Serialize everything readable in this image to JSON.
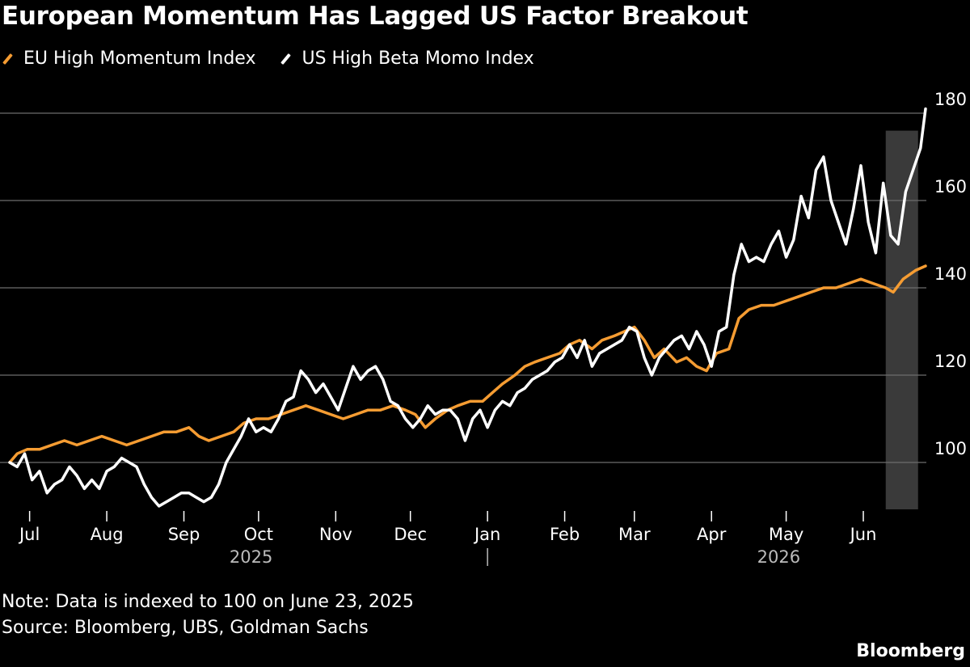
{
  "colors": {
    "eu": "#f59c32",
    "us": "#ffffff",
    "grid": "#6e6e6e",
    "shade": "#3a3a3a"
  },
  "chart_data": {
    "type": "line",
    "title": "European Momentum Has Lagged US Factor Breakout",
    "note": "Note: Data is indexed to 100 on June 23, 2025",
    "source": "Source: Bloomberg, UBS, Goldman Sachs",
    "brand": "Bloomberg",
    "ylim": [
      88,
      183
    ],
    "y_ticks": [
      100,
      120,
      140,
      160,
      180
    ],
    "x_range": [
      "2025-06-23",
      "2026-06-26"
    ],
    "month_ticks": [
      {
        "label": "Jul",
        "date": "2025-07-01"
      },
      {
        "label": "Aug",
        "date": "2025-08-01"
      },
      {
        "label": "Sep",
        "date": "2025-09-01"
      },
      {
        "label": "Oct",
        "date": "2025-10-01"
      },
      {
        "label": "Nov",
        "date": "2025-11-01"
      },
      {
        "label": "Dec",
        "date": "2025-12-01"
      },
      {
        "label": "Jan",
        "date": "2026-01-01"
      },
      {
        "label": "Feb",
        "date": "2026-02-01"
      },
      {
        "label": "Mar",
        "date": "2026-03-01"
      },
      {
        "label": "Apr",
        "date": "2026-04-01"
      },
      {
        "label": "May",
        "date": "2026-05-01"
      },
      {
        "label": "Jun",
        "date": "2026-06-01"
      }
    ],
    "year_labels": [
      {
        "label": "2025",
        "date": "2025-09-28"
      },
      {
        "label": "2026",
        "date": "2026-04-28"
      }
    ],
    "year_separator_date": "2026-01-01",
    "highlight": {
      "start": "2026-06-10",
      "end": "2026-06-23"
    },
    "grid": true,
    "legend_position": "top-left",
    "series": [
      {
        "name": "EU High Momentum Index",
        "color": "#f59c32",
        "points": [
          [
            "2025-06-23",
            100
          ],
          [
            "2025-06-26",
            102
          ],
          [
            "2025-06-30",
            103
          ],
          [
            "2025-07-05",
            103
          ],
          [
            "2025-07-10",
            104
          ],
          [
            "2025-07-15",
            105
          ],
          [
            "2025-07-20",
            104
          ],
          [
            "2025-07-25",
            105
          ],
          [
            "2025-07-30",
            106
          ],
          [
            "2025-08-04",
            105
          ],
          [
            "2025-08-09",
            104
          ],
          [
            "2025-08-14",
            105
          ],
          [
            "2025-08-19",
            106
          ],
          [
            "2025-08-24",
            107
          ],
          [
            "2025-08-29",
            107
          ],
          [
            "2025-09-03",
            108
          ],
          [
            "2025-09-07",
            106
          ],
          [
            "2025-09-11",
            105
          ],
          [
            "2025-09-16",
            106
          ],
          [
            "2025-09-21",
            107
          ],
          [
            "2025-09-25",
            109
          ],
          [
            "2025-09-30",
            110
          ],
          [
            "2025-10-05",
            110
          ],
          [
            "2025-10-10",
            111
          ],
          [
            "2025-10-15",
            112
          ],
          [
            "2025-10-20",
            113
          ],
          [
            "2025-10-25",
            112
          ],
          [
            "2025-10-30",
            111
          ],
          [
            "2025-11-04",
            110
          ],
          [
            "2025-11-09",
            111
          ],
          [
            "2025-11-14",
            112
          ],
          [
            "2025-11-19",
            112
          ],
          [
            "2025-11-24",
            113
          ],
          [
            "2025-11-29",
            112
          ],
          [
            "2025-12-03",
            111
          ],
          [
            "2025-12-07",
            108
          ],
          [
            "2025-12-11",
            110
          ],
          [
            "2025-12-16",
            112
          ],
          [
            "2025-12-20",
            113
          ],
          [
            "2025-12-25",
            114
          ],
          [
            "2025-12-30",
            114
          ],
          [
            "2026-01-03",
            116
          ],
          [
            "2026-01-07",
            118
          ],
          [
            "2026-01-12",
            120
          ],
          [
            "2026-01-16",
            122
          ],
          [
            "2026-01-20",
            123
          ],
          [
            "2026-01-25",
            124
          ],
          [
            "2026-01-30",
            125
          ],
          [
            "2026-02-03",
            127
          ],
          [
            "2026-02-07",
            128
          ],
          [
            "2026-02-12",
            126
          ],
          [
            "2026-02-16",
            128
          ],
          [
            "2026-02-21",
            129
          ],
          [
            "2026-02-25",
            130
          ],
          [
            "2026-03-01",
            131
          ],
          [
            "2026-03-05",
            128
          ],
          [
            "2026-03-09",
            124
          ],
          [
            "2026-03-13",
            126
          ],
          [
            "2026-03-18",
            123
          ],
          [
            "2026-03-22",
            124
          ],
          [
            "2026-03-26",
            122
          ],
          [
            "2026-03-30",
            121
          ],
          [
            "2026-04-03",
            125
          ],
          [
            "2026-04-08",
            126
          ],
          [
            "2026-04-12",
            133
          ],
          [
            "2026-04-16",
            135
          ],
          [
            "2026-04-21",
            136
          ],
          [
            "2026-04-26",
            136
          ],
          [
            "2026-05-01",
            137
          ],
          [
            "2026-05-06",
            138
          ],
          [
            "2026-05-11",
            139
          ],
          [
            "2026-05-16",
            140
          ],
          [
            "2026-05-21",
            140
          ],
          [
            "2026-05-26",
            141
          ],
          [
            "2026-05-31",
            142
          ],
          [
            "2026-06-05",
            141
          ],
          [
            "2026-06-10",
            140
          ],
          [
            "2026-06-13",
            139
          ],
          [
            "2026-06-17",
            142
          ],
          [
            "2026-06-22",
            144
          ],
          [
            "2026-06-26",
            145
          ]
        ]
      },
      {
        "name": "US High Beta Momo Index",
        "color": "#ffffff",
        "points": [
          [
            "2025-06-23",
            100
          ],
          [
            "2025-06-26",
            99
          ],
          [
            "2025-06-29",
            102
          ],
          [
            "2025-07-02",
            96
          ],
          [
            "2025-07-05",
            98
          ],
          [
            "2025-07-08",
            93
          ],
          [
            "2025-07-11",
            95
          ],
          [
            "2025-07-14",
            96
          ],
          [
            "2025-07-17",
            99
          ],
          [
            "2025-07-20",
            97
          ],
          [
            "2025-07-23",
            94
          ],
          [
            "2025-07-26",
            96
          ],
          [
            "2025-07-29",
            94
          ],
          [
            "2025-08-01",
            98
          ],
          [
            "2025-08-04",
            99
          ],
          [
            "2025-08-07",
            101
          ],
          [
            "2025-08-10",
            100
          ],
          [
            "2025-08-13",
            99
          ],
          [
            "2025-08-16",
            95
          ],
          [
            "2025-08-19",
            92
          ],
          [
            "2025-08-22",
            90
          ],
          [
            "2025-08-25",
            91
          ],
          [
            "2025-08-28",
            92
          ],
          [
            "2025-08-31",
            93
          ],
          [
            "2025-09-03",
            93
          ],
          [
            "2025-09-06",
            92
          ],
          [
            "2025-09-09",
            91
          ],
          [
            "2025-09-12",
            92
          ],
          [
            "2025-09-15",
            95
          ],
          [
            "2025-09-18",
            100
          ],
          [
            "2025-09-21",
            103
          ],
          [
            "2025-09-24",
            106
          ],
          [
            "2025-09-27",
            110
          ],
          [
            "2025-09-30",
            107
          ],
          [
            "2025-10-03",
            108
          ],
          [
            "2025-10-06",
            107
          ],
          [
            "2025-10-09",
            110
          ],
          [
            "2025-10-12",
            114
          ],
          [
            "2025-10-15",
            115
          ],
          [
            "2025-10-18",
            121
          ],
          [
            "2025-10-21",
            119
          ],
          [
            "2025-10-24",
            116
          ],
          [
            "2025-10-27",
            118
          ],
          [
            "2025-10-30",
            115
          ],
          [
            "2025-11-02",
            112
          ],
          [
            "2025-11-05",
            117
          ],
          [
            "2025-11-08",
            122
          ],
          [
            "2025-11-11",
            119
          ],
          [
            "2025-11-14",
            121
          ],
          [
            "2025-11-17",
            122
          ],
          [
            "2025-11-20",
            119
          ],
          [
            "2025-11-23",
            114
          ],
          [
            "2025-11-26",
            113
          ],
          [
            "2025-11-29",
            110
          ],
          [
            "2025-12-02",
            108
          ],
          [
            "2025-12-05",
            110
          ],
          [
            "2025-12-08",
            113
          ],
          [
            "2025-12-11",
            111
          ],
          [
            "2025-12-14",
            112
          ],
          [
            "2025-12-17",
            112
          ],
          [
            "2025-12-20",
            110
          ],
          [
            "2025-12-23",
            105
          ],
          [
            "2025-12-26",
            110
          ],
          [
            "2025-12-29",
            112
          ],
          [
            "2026-01-01",
            108
          ],
          [
            "2026-01-04",
            112
          ],
          [
            "2026-01-07",
            114
          ],
          [
            "2026-01-10",
            113
          ],
          [
            "2026-01-13",
            116
          ],
          [
            "2026-01-16",
            117
          ],
          [
            "2026-01-19",
            119
          ],
          [
            "2026-01-22",
            120
          ],
          [
            "2026-01-25",
            121
          ],
          [
            "2026-01-28",
            123
          ],
          [
            "2026-01-31",
            124
          ],
          [
            "2026-02-03",
            127
          ],
          [
            "2026-02-06",
            124
          ],
          [
            "2026-02-09",
            128
          ],
          [
            "2026-02-12",
            122
          ],
          [
            "2026-02-15",
            125
          ],
          [
            "2026-02-18",
            126
          ],
          [
            "2026-02-21",
            127
          ],
          [
            "2026-02-24",
            128
          ],
          [
            "2026-02-27",
            131
          ],
          [
            "2026-03-02",
            130
          ],
          [
            "2026-03-05",
            124
          ],
          [
            "2026-03-08",
            120
          ],
          [
            "2026-03-11",
            124
          ],
          [
            "2026-03-14",
            126
          ],
          [
            "2026-03-17",
            128
          ],
          [
            "2026-03-20",
            129
          ],
          [
            "2026-03-23",
            126
          ],
          [
            "2026-03-26",
            130
          ],
          [
            "2026-03-29",
            127
          ],
          [
            "2026-04-01",
            122
          ],
          [
            "2026-04-04",
            130
          ],
          [
            "2026-04-07",
            131
          ],
          [
            "2026-04-10",
            143
          ],
          [
            "2026-04-13",
            150
          ],
          [
            "2026-04-16",
            146
          ],
          [
            "2026-04-19",
            147
          ],
          [
            "2026-04-22",
            146
          ],
          [
            "2026-04-25",
            150
          ],
          [
            "2026-04-28",
            153
          ],
          [
            "2026-05-01",
            147
          ],
          [
            "2026-05-04",
            151
          ],
          [
            "2026-05-07",
            161
          ],
          [
            "2026-05-10",
            156
          ],
          [
            "2026-05-13",
            167
          ],
          [
            "2026-05-16",
            170
          ],
          [
            "2026-05-19",
            160
          ],
          [
            "2026-05-22",
            155
          ],
          [
            "2026-05-25",
            150
          ],
          [
            "2026-05-28",
            158
          ],
          [
            "2026-05-31",
            168
          ],
          [
            "2026-06-03",
            155
          ],
          [
            "2026-06-06",
            148
          ],
          [
            "2026-06-09",
            164
          ],
          [
            "2026-06-12",
            152
          ],
          [
            "2026-06-15",
            150
          ],
          [
            "2026-06-18",
            162
          ],
          [
            "2026-06-21",
            167
          ],
          [
            "2026-06-24",
            172
          ],
          [
            "2026-06-26",
            181
          ]
        ]
      }
    ]
  }
}
